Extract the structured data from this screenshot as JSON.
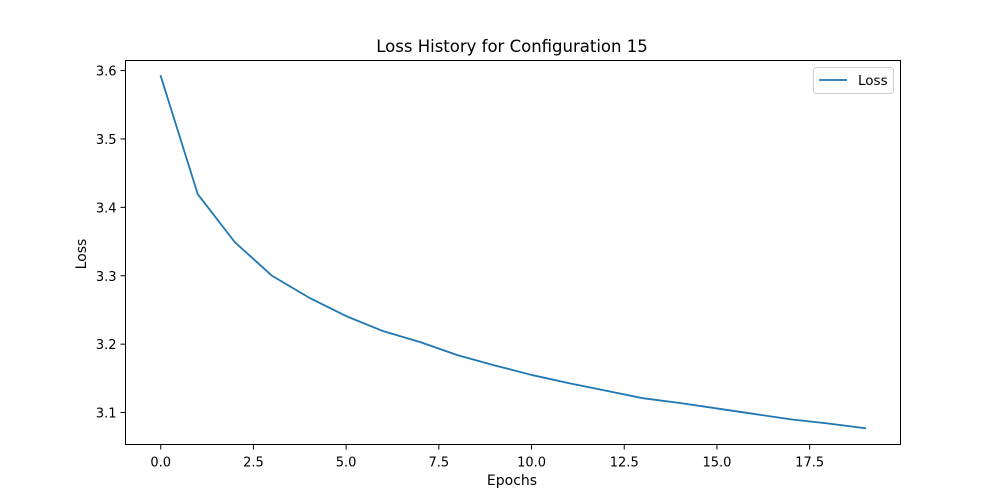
{
  "chart_data": {
    "type": "line",
    "title": "Loss History for Configuration 15",
    "xlabel": "Epochs",
    "ylabel": "Loss",
    "xlim": [
      -0.95,
      19.95
    ],
    "ylim": [
      3.0533,
      3.6147
    ],
    "x_ticks": [
      0.0,
      2.5,
      5.0,
      7.5,
      10.0,
      12.5,
      15.0,
      17.5
    ],
    "x_tick_labels": [
      "0.0",
      "2.5",
      "5.0",
      "7.5",
      "10.0",
      "12.5",
      "15.0",
      "17.5"
    ],
    "y_ticks": [
      3.1,
      3.2,
      3.3,
      3.4,
      3.5,
      3.6
    ],
    "y_tick_labels": [
      "3.1",
      "3.2",
      "3.3",
      "3.4",
      "3.5",
      "3.6"
    ],
    "grid": false,
    "legend": "top-right",
    "series": [
      {
        "name": "Loss",
        "color": "#1f77b4",
        "x": [
          0,
          1,
          2,
          3,
          4,
          5,
          6,
          7,
          8,
          9,
          10,
          11,
          12,
          13,
          14,
          15,
          16,
          17,
          18,
          19
        ],
        "values": [
          3.592,
          3.419,
          3.349,
          3.3,
          3.268,
          3.241,
          3.219,
          3.203,
          3.184,
          3.169,
          3.155,
          3.143,
          3.132,
          3.121,
          3.114,
          3.106,
          3.098,
          3.09,
          3.084,
          3.077
        ]
      }
    ]
  }
}
